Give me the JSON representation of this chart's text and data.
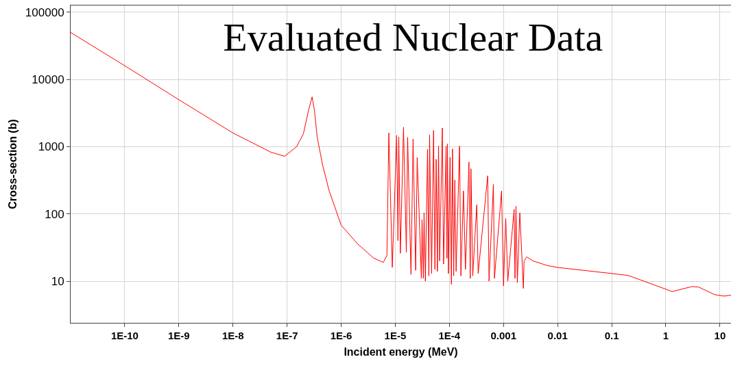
{
  "chart_data": {
    "type": "line",
    "title": "Evaluated Nuclear Data",
    "xlabel": "Incident energy (MeV)",
    "ylabel": "Cross-section (b)",
    "x": [
      1e-11,
      1e-10,
      1e-09,
      1e-08,
      5e-08,
      9e-08,
      1.5e-07,
      2e-07,
      2.5e-07,
      2.9e-07,
      3.2e-07,
      3.6e-07,
      4.5e-07,
      6e-07,
      1e-06,
      2e-06,
      4e-06,
      6e-06,
      7e-06,
      7.6e-06,
      8.8e-06,
      1.06e-05,
      1.12e-05,
      1.16e-05,
      1.24e-05,
      1.42e-05,
      1.6e-05,
      1.69e-05,
      1.95e-05,
      2.13e-05,
      2.38e-05,
      2.54e-05,
      3.03e-05,
      3.12e-05,
      3.3e-05,
      3.4e-05,
      3.6e-05,
      3.94e-05,
      4.17e-05,
      4.3e-05,
      4.69e-05,
      5.1e-05,
      5.4e-05,
      5.7e-05,
      6e-05,
      6.3e-05,
      6.6e-05,
      7.4e-05,
      7.8e-05,
      8.7e-05,
      9e-05,
      9.2e-05,
      9.6e-05,
      0.000103,
      0.000109,
      0.000114,
      0.00012,
      0.000126,
      0.000133,
      0.000154,
      0.000163,
      0.000182,
      0.000198,
      0.00023,
      0.000243,
      0.00025,
      0.00027,
      0.00032,
      0.00034,
      0.00051,
      0.00054,
      0.00065,
      0.00068,
      0.00092,
      0.001,
      0.0011,
      0.0012,
      0.00157,
      0.00163,
      0.0017,
      0.0018,
      0.002,
      0.00233,
      0.0024,
      0.0027,
      0.0035,
      0.0066,
      0.01,
      0.1,
      0.2,
      1,
      1.3,
      3,
      4,
      8,
      12,
      16
    ],
    "values": [
      50000,
      16000,
      5000,
      1600,
      830,
      720,
      1000,
      1550,
      3500,
      5500,
      3500,
      1400,
      550,
      220,
      68,
      36,
      22,
      19,
      24,
      1600,
      16,
      1480,
      40,
      1400,
      26,
      1950,
      27,
      1380,
      12.6,
      1300,
      14.5,
      690,
      11,
      82,
      11,
      104,
      10,
      910,
      12,
      1490,
      13,
      1750,
      15,
      650,
      14,
      1020,
      20,
      1900,
      18,
      1020,
      22,
      1100,
      13,
      690,
      9,
      930,
      12,
      320,
      14,
      1020,
      12,
      220,
      15,
      590,
      11,
      470,
      12,
      137,
      13,
      370,
      10,
      275,
      11,
      220,
      8.5,
      86,
      10,
      117,
      11,
      130,
      9.5,
      104,
      7.8,
      20,
      23,
      20,
      17,
      16,
      13,
      12.2,
      7.6,
      7,
      8.3,
      8.2,
      6.3,
      6,
      6.2
    ],
    "color": "#ff0000",
    "marker": "none",
    "log": "xy",
    "grid": true,
    "xlim": [
      1e-11,
      16
    ],
    "ylim": [
      2.4,
      126000
    ],
    "xticks": [
      {
        "value": 1e-10,
        "label": "1E-10"
      },
      {
        "value": 1e-09,
        "label": "1E-9"
      },
      {
        "value": 1e-08,
        "label": "1E-8"
      },
      {
        "value": 1e-07,
        "label": "1E-7"
      },
      {
        "value": 1e-06,
        "label": "1E-6"
      },
      {
        "value": 1e-05,
        "label": "1E-5"
      },
      {
        "value": 0.0001,
        "label": "1E-4"
      },
      0.001,
      0.01,
      0.1,
      1,
      10
    ],
    "yticks": [
      10,
      100,
      1000,
      10000,
      100000
    ]
  }
}
